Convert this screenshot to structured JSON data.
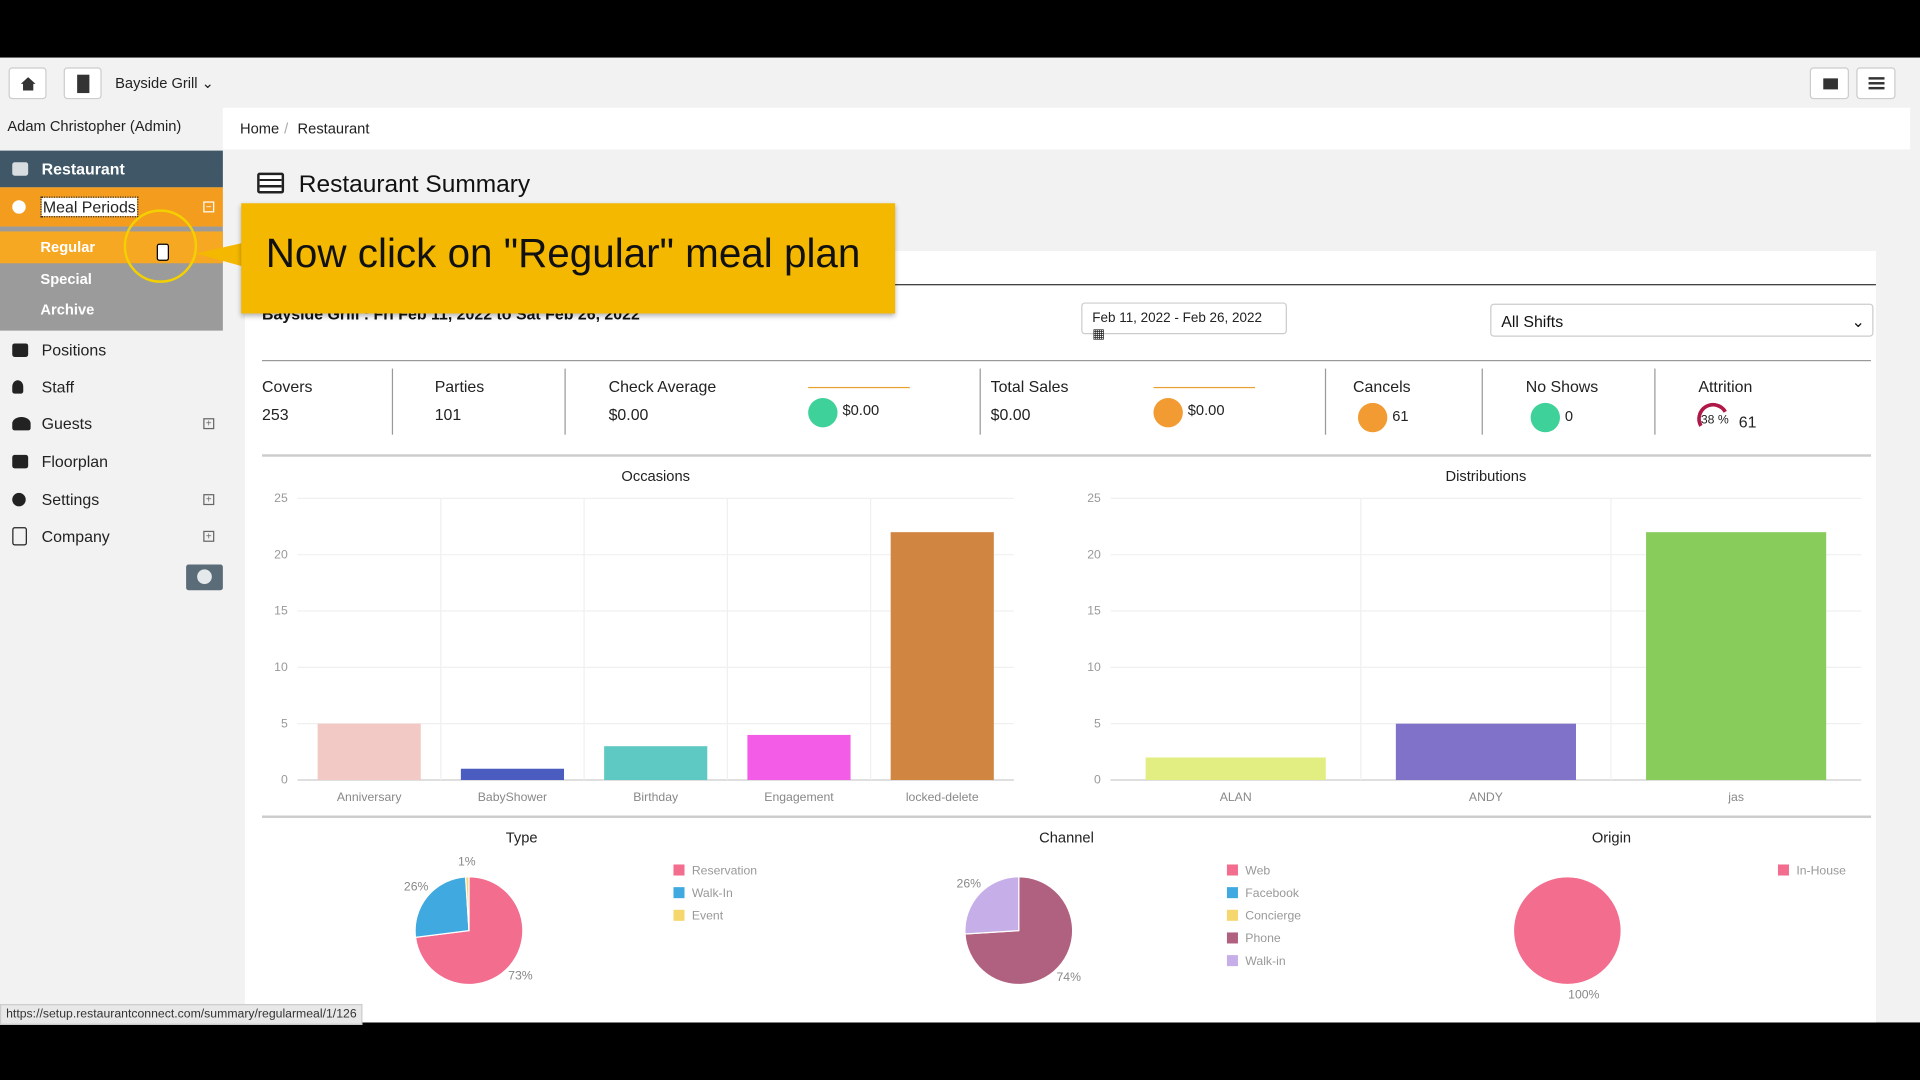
{
  "topbar": {
    "venue": "Bayside Grill"
  },
  "sidebar": {
    "user": "Adam Christopher (Admin)",
    "items": [
      "Restaurant",
      "Meal Periods",
      "Regular",
      "Special",
      "Archive",
      "Positions",
      "Staff",
      "Guests",
      "Floorplan",
      "Settings",
      "Company"
    ]
  },
  "breadcrumb": [
    "Home",
    "Restaurant"
  ],
  "page_title": "Restaurant Summary",
  "tooltip": "Now click on \"Regular\" meal plan",
  "summary": {
    "heading": "Bayside Grill : Fri Feb 11, 2022 to Sat Feb 26, 2022",
    "date_range": "Feb 11, 2022 - Feb 26, 2022",
    "shift": "All Shifts"
  },
  "stats": [
    {
      "label": "Covers",
      "value": "253"
    },
    {
      "label": "Parties",
      "value": "101"
    },
    {
      "label": "Check Average",
      "value": "$0.00",
      "trend": "$0.00"
    },
    {
      "label": "Total Sales",
      "value": "$0.00",
      "trend": "$0.00"
    },
    {
      "label": "Cancels",
      "value": "61"
    },
    {
      "label": "No Shows",
      "value": "0"
    },
    {
      "label": "Attrition",
      "value": "61",
      "gauge": "38 %"
    }
  ],
  "status_url": "https://setup.restaurantconnect.com/summary/regularmeal/1/126",
  "chart_data": [
    {
      "type": "bar",
      "title": "Occasions",
      "categories": [
        "Anniversary",
        "BabyShower",
        "Birthday",
        "Engagement",
        "locked-delete"
      ],
      "values": [
        5,
        1,
        3,
        4,
        22
      ],
      "colors": [
        "#f2c9c4",
        "#4a5cc0",
        "#5ec8c2",
        "#f25ce6",
        "#d08540"
      ],
      "ylim": [
        0,
        25
      ],
      "yticks": [
        0,
        5,
        10,
        15,
        20,
        25
      ],
      "grid": true
    },
    {
      "type": "bar",
      "title": "Distributions",
      "categories": [
        "ALAN",
        "ANDY",
        "jas"
      ],
      "values": [
        2,
        5,
        22
      ],
      "colors": [
        "#e2ee82",
        "#8172c9",
        "#88cc5c"
      ],
      "ylim": [
        0,
        25
      ],
      "yticks": [
        0,
        5,
        10,
        15,
        20,
        25
      ],
      "grid": true
    },
    {
      "type": "pie",
      "title": "Type",
      "categories": [
        "Reservation",
        "Walk-In",
        "Event"
      ],
      "values": [
        73,
        26,
        1
      ],
      "value_labels": [
        "73%",
        "26%",
        "1%"
      ],
      "colors": [
        "#f26d8e",
        "#3fa9e0",
        "#f5d76e"
      ]
    },
    {
      "type": "pie",
      "title": "Channel",
      "categories": [
        "Web",
        "Facebook",
        "Concierge",
        "Phone",
        "Walk-in"
      ],
      "values": [
        0,
        0,
        0,
        74,
        26
      ],
      "value_labels": [
        null,
        null,
        null,
        "74%",
        "26%"
      ],
      "colors": [
        "#f26d8e",
        "#3fa9e0",
        "#f5d76e",
        "#b0617f",
        "#c6afe8"
      ]
    },
    {
      "type": "pie",
      "title": "Origin",
      "categories": [
        "In-House"
      ],
      "values": [
        100
      ],
      "value_labels": [
        "100%"
      ],
      "colors": [
        "#f26d8e"
      ]
    }
  ]
}
